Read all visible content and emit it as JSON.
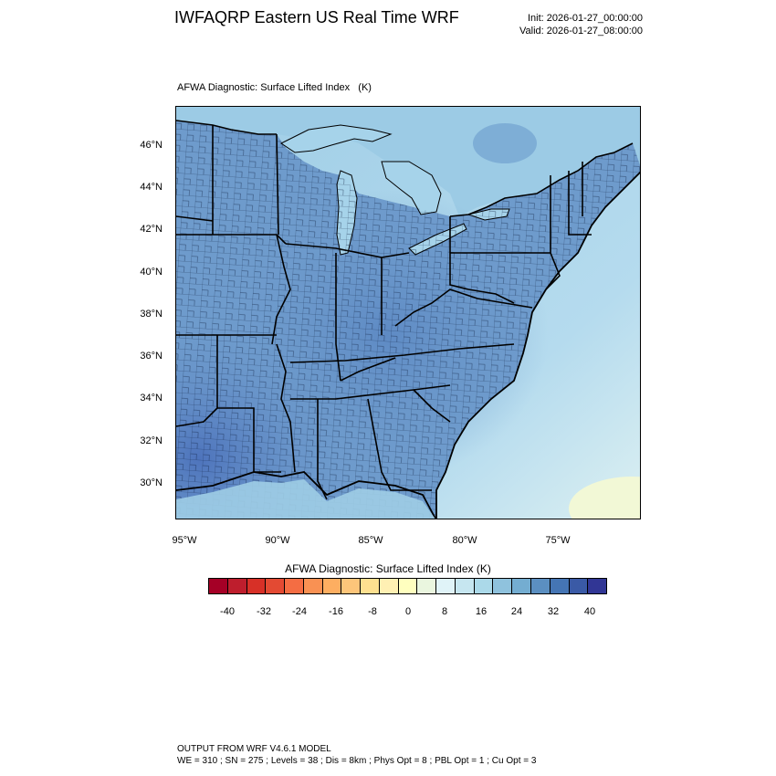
{
  "header": {
    "title": "IWFAQRP Eastern US Real Time WRF",
    "init": "Init: 2026-01-27_00:00:00",
    "valid": "Valid: 2026-01-27_08:00:00"
  },
  "map": {
    "title": "AFWA Diagnostic: Surface Lifted Index   (K)",
    "lat_labels": [
      "46°N",
      "44°N",
      "42°N",
      "40°N",
      "38°N",
      "36°N",
      "34°N",
      "32°N",
      "30°N"
    ],
    "lon_labels": [
      "95°W",
      "90°W",
      "85°W",
      "80°W",
      "75°W"
    ],
    "field": "Surface Lifted Index",
    "land_tone": "medium-blue",
    "ocean_tone": "light-blue"
  },
  "colorbar": {
    "title": "AFWA Diagnostic: Surface Lifted Index  (K)",
    "labels": [
      "-40",
      "-32",
      "-24",
      "-16",
      "-8",
      "0",
      "8",
      "16",
      "24",
      "32",
      "40"
    ],
    "colors": [
      "#a50026",
      "#be1e2d",
      "#d73027",
      "#e34a33",
      "#f46d43",
      "#f99153",
      "#fdae61",
      "#fdc57a",
      "#fee090",
      "#fff0b3",
      "#ffffbf",
      "#eaf6df",
      "#e0f3f8",
      "#c6e6f0",
      "#abd9e9",
      "#8fc2dd",
      "#74add1",
      "#5b8fc1",
      "#4575b4",
      "#3a5aa6",
      "#313695"
    ]
  },
  "footer": {
    "line1": "OUTPUT FROM WRF V4.6.1 MODEL",
    "line2": "WE = 310 ; SN = 275 ; Levels = 38 ; Dis = 8km ; Phys Opt = 8 ; PBL Opt = 1 ; Cu Opt = 3"
  }
}
